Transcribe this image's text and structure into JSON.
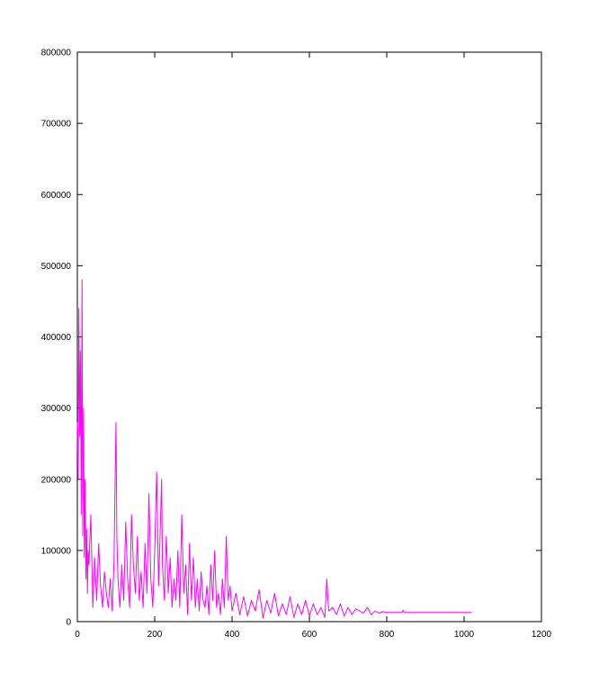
{
  "chart_data": {
    "type": "line",
    "title": "",
    "xlabel": "",
    "ylabel": "",
    "xlim": [
      0,
      1200
    ],
    "ylim": [
      0,
      800000
    ],
    "x_ticks": [
      0,
      200,
      400,
      600,
      800,
      1000,
      1200
    ],
    "y_ticks": [
      0,
      100000,
      200000,
      300000,
      400000,
      500000,
      600000,
      700000,
      800000
    ],
    "x_tick_labels": [
      "0",
      "200",
      "400",
      "600",
      "800",
      "1000",
      "1200"
    ],
    "y_tick_labels": [
      "0",
      "100000",
      "200000",
      "300000",
      "400000",
      "500000",
      "600000",
      "700000",
      "800000"
    ],
    "grid": false,
    "legend": "none",
    "series": [
      {
        "color": "#ff00ff",
        "x": [
          0,
          2,
          4,
          6,
          8,
          10,
          12,
          14,
          16,
          18,
          20,
          22,
          24,
          26,
          28,
          30,
          35,
          40,
          45,
          50,
          55,
          60,
          65,
          70,
          75,
          80,
          85,
          90,
          95,
          98,
          100,
          102,
          105,
          110,
          115,
          120,
          125,
          130,
          135,
          140,
          145,
          150,
          155,
          160,
          165,
          170,
          175,
          180,
          185,
          190,
          195,
          200,
          205,
          210,
          215,
          218,
          220,
          225,
          230,
          235,
          240,
          245,
          250,
          255,
          260,
          265,
          270,
          275,
          280,
          285,
          290,
          295,
          300,
          305,
          310,
          315,
          320,
          325,
          330,
          335,
          340,
          345,
          350,
          355,
          360,
          365,
          370,
          375,
          380,
          385,
          390,
          395,
          400,
          410,
          420,
          430,
          440,
          450,
          460,
          470,
          480,
          490,
          500,
          510,
          520,
          530,
          540,
          550,
          560,
          570,
          580,
          590,
          600,
          610,
          620,
          630,
          640,
          645,
          650,
          660,
          670,
          680,
          690,
          700,
          710,
          720,
          730,
          740,
          750,
          760,
          770,
          780,
          790,
          800,
          820,
          840,
          842,
          845,
          860,
          900,
          950,
          1000,
          1020
        ],
        "y": [
          280000,
          200000,
          440000,
          260000,
          380000,
          150000,
          480000,
          120000,
          300000,
          90000,
          200000,
          60000,
          130000,
          40000,
          100000,
          80000,
          150000,
          20000,
          90000,
          30000,
          110000,
          50000,
          20000,
          70000,
          40000,
          20000,
          60000,
          15000,
          85000,
          210000,
          280000,
          120000,
          60000,
          20000,
          80000,
          30000,
          140000,
          60000,
          20000,
          150000,
          80000,
          40000,
          120000,
          30000,
          70000,
          20000,
          110000,
          40000,
          180000,
          60000,
          20000,
          100000,
          210000,
          50000,
          140000,
          200000,
          80000,
          30000,
          120000,
          40000,
          90000,
          20000,
          60000,
          30000,
          100000,
          20000,
          150000,
          40000,
          80000,
          10000,
          110000,
          30000,
          90000,
          20000,
          60000,
          15000,
          70000,
          30000,
          20000,
          50000,
          10000,
          80000,
          30000,
          100000,
          20000,
          40000,
          10000,
          60000,
          20000,
          120000,
          30000,
          50000,
          15000,
          40000,
          10000,
          35000,
          8000,
          30000,
          15000,
          45000,
          5000,
          30000,
          12000,
          40000,
          8000,
          25000,
          10000,
          35000,
          6000,
          25000,
          10000,
          30000,
          8000,
          25000,
          10000,
          20000,
          6000,
          60000,
          15000,
          20000,
          10000,
          25000,
          8000,
          20000,
          10000,
          18000,
          15000,
          12000,
          20000,
          10000,
          15000,
          12000,
          14000,
          13000,
          13000,
          13000,
          16000,
          13000,
          13000,
          13000,
          13000,
          13000,
          13000
        ]
      }
    ]
  }
}
